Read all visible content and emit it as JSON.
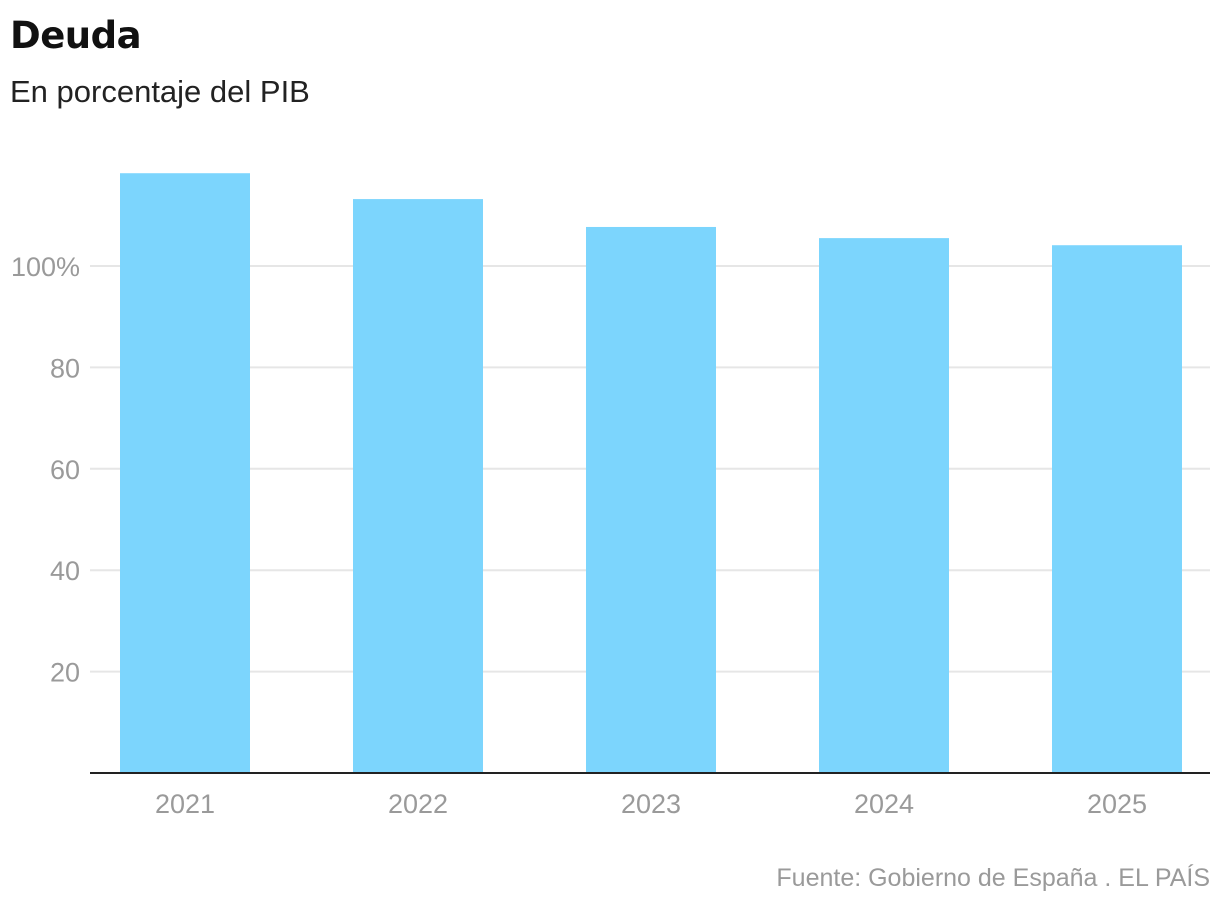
{
  "title": "Deuda",
  "subtitle": "En porcentaje del PIB",
  "source": "Fuente: Gobierno de España . EL PAÍS",
  "colors": {
    "bar": "#7cd5fd",
    "grid": "#e6e6e6",
    "axis": "#222222",
    "tick_text": "#9a9a9a"
  },
  "chart_data": {
    "type": "bar",
    "title": "Deuda",
    "subtitle": "En porcentaje del PIB",
    "categories": [
      "2021",
      "2022",
      "2023",
      "2024",
      "2025"
    ],
    "values": [
      118.3,
      113.2,
      107.7,
      105.5,
      104.1
    ],
    "yticks": [
      20,
      40,
      60,
      80,
      100
    ],
    "ytick_labels": [
      "20",
      "40",
      "60",
      "80",
      "100%"
    ],
    "ylim": [
      0,
      120
    ],
    "grid": true,
    "xlabel": "",
    "ylabel": ""
  }
}
